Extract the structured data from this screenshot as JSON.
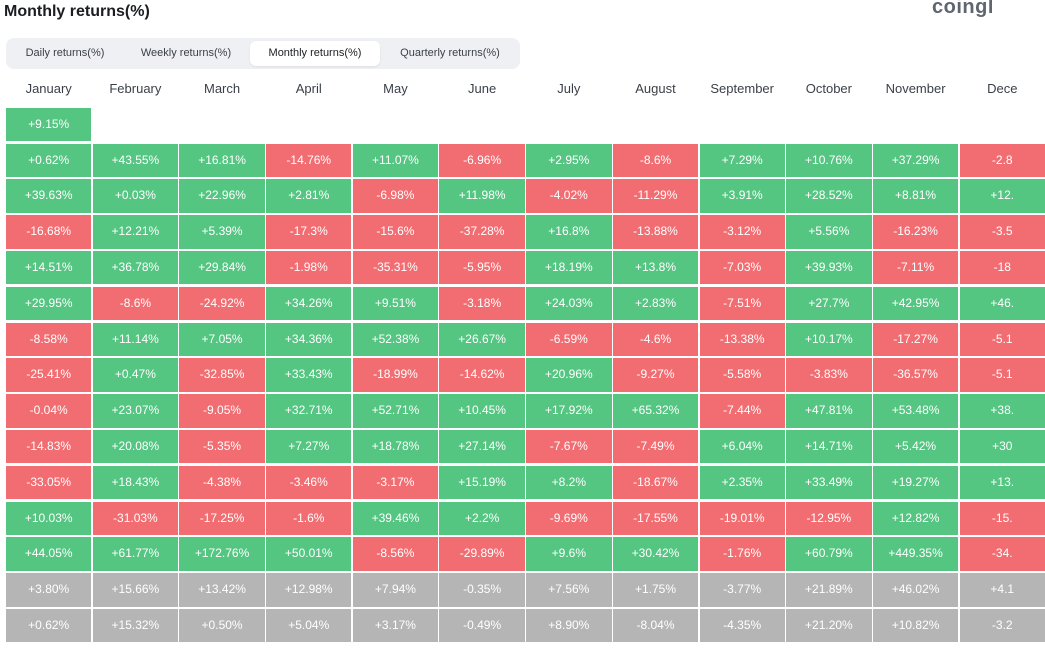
{
  "title": "Monthly returns(%)",
  "brand": "coingl",
  "tabs": [
    {
      "label": "Daily returns(%)",
      "active": false
    },
    {
      "label": "Weekly returns(%)",
      "active": false
    },
    {
      "label": "Monthly returns(%)",
      "active": true
    },
    {
      "label": "Quarterly returns(%)",
      "active": false
    }
  ],
  "colors": {
    "positive": "#55c582",
    "negative": "#f26d72",
    "summary": "#b5b5b5"
  },
  "months": [
    "January",
    "February",
    "March",
    "April",
    "May",
    "June",
    "July",
    "August",
    "September",
    "October",
    "November",
    "Dece"
  ],
  "rows": [
    [
      "+9.15%",
      "",
      "",
      "",
      "",
      "",
      "",
      "",
      "",
      "",
      "",
      ""
    ],
    [
      "+0.62%",
      "+43.55%",
      "+16.81%",
      "-14.76%",
      "+11.07%",
      "-6.96%",
      "+2.95%",
      "-8.6%",
      "+7.29%",
      "+10.76%",
      "+37.29%",
      "-2.8"
    ],
    [
      "+39.63%",
      "+0.03%",
      "+22.96%",
      "+2.81%",
      "-6.98%",
      "+11.98%",
      "-4.02%",
      "-11.29%",
      "+3.91%",
      "+28.52%",
      "+8.81%",
      "+12."
    ],
    [
      "-16.68%",
      "+12.21%",
      "+5.39%",
      "-17.3%",
      "-15.6%",
      "-37.28%",
      "+16.8%",
      "-13.88%",
      "-3.12%",
      "+5.56%",
      "-16.23%",
      "-3.5"
    ],
    [
      "+14.51%",
      "+36.78%",
      "+29.84%",
      "-1.98%",
      "-35.31%",
      "-5.95%",
      "+18.19%",
      "+13.8%",
      "-7.03%",
      "+39.93%",
      "-7.11%",
      "-18"
    ],
    [
      "+29.95%",
      "-8.6%",
      "-24.92%",
      "+34.26%",
      "+9.51%",
      "-3.18%",
      "+24.03%",
      "+2.83%",
      "-7.51%",
      "+27.7%",
      "+42.95%",
      "+46."
    ],
    [
      "-8.58%",
      "+11.14%",
      "+7.05%",
      "+34.36%",
      "+52.38%",
      "+26.67%",
      "-6.59%",
      "-4.6%",
      "-13.38%",
      "+10.17%",
      "-17.27%",
      "-5.1"
    ],
    [
      "-25.41%",
      "+0.47%",
      "-32.85%",
      "+33.43%",
      "-18.99%",
      "-14.62%",
      "+20.96%",
      "-9.27%",
      "-5.58%",
      "-3.83%",
      "-36.57%",
      "-5.1"
    ],
    [
      "-0.04%",
      "+23.07%",
      "-9.05%",
      "+32.71%",
      "+52.71%",
      "+10.45%",
      "+17.92%",
      "+65.32%",
      "-7.44%",
      "+47.81%",
      "+53.48%",
      "+38."
    ],
    [
      "-14.83%",
      "+20.08%",
      "-5.35%",
      "+7.27%",
      "+18.78%",
      "+27.14%",
      "-7.67%",
      "-7.49%",
      "+6.04%",
      "+14.71%",
      "+5.42%",
      "+30"
    ],
    [
      "-33.05%",
      "+18.43%",
      "-4.38%",
      "-3.46%",
      "-3.17%",
      "+15.19%",
      "+8.2%",
      "-18.67%",
      "+2.35%",
      "+33.49%",
      "+19.27%",
      "+13."
    ],
    [
      "+10.03%",
      "-31.03%",
      "-17.25%",
      "-1.6%",
      "+39.46%",
      "+2.2%",
      "-9.69%",
      "-17.55%",
      "-19.01%",
      "-12.95%",
      "+12.82%",
      "-15."
    ],
    [
      "+44.05%",
      "+61.77%",
      "+172.76%",
      "+50.01%",
      "-8.56%",
      "-29.89%",
      "+9.6%",
      "+30.42%",
      "-1.76%",
      "+60.79%",
      "+449.35%",
      "-34."
    ]
  ],
  "summary_rows": [
    [
      "+3.80%",
      "+15.66%",
      "+13.42%",
      "+12.98%",
      "+7.94%",
      "-0.35%",
      "+7.56%",
      "+1.75%",
      "-3.77%",
      "+21.89%",
      "+46.02%",
      "+4.1"
    ],
    [
      "+0.62%",
      "+15.32%",
      "+0.50%",
      "+5.04%",
      "+3.17%",
      "-0.49%",
      "+8.90%",
      "-8.04%",
      "-4.35%",
      "+21.20%",
      "+10.82%",
      "-3.2"
    ]
  ]
}
